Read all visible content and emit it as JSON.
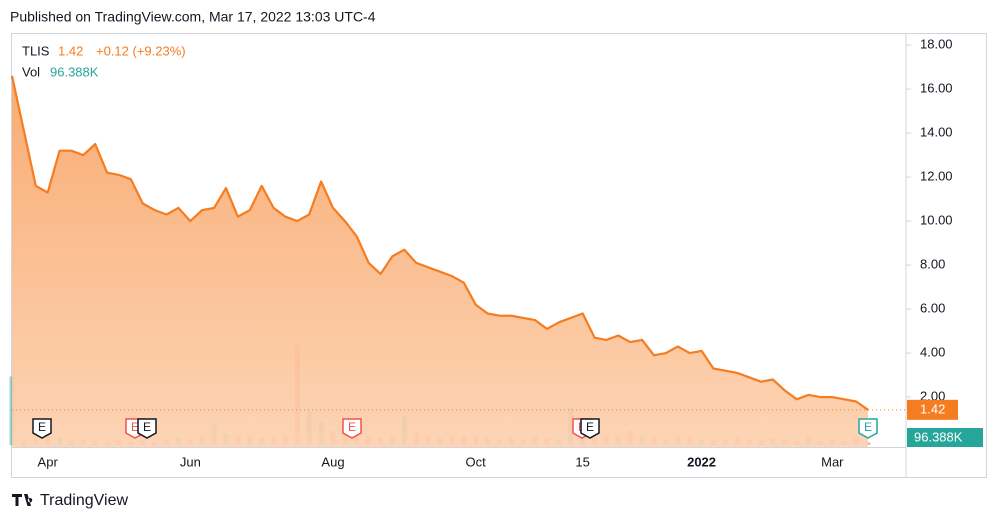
{
  "header": {
    "text": "Published on TradingView.com, Mar 17, 2022 13:03 UTC-4"
  },
  "chart_data": {
    "type": "area",
    "change": "+0.12 (+9.23%)",
    "categories": [
      null,
      null,
      null,
      "Apr",
      null,
      null,
      null,
      null,
      null,
      null,
      null,
      null,
      null,
      null,
      null,
      "Jun",
      null,
      null,
      null,
      null,
      null,
      null,
      null,
      null,
      null,
      null,
      null,
      "Aug",
      null,
      null,
      null,
      null,
      null,
      null,
      null,
      null,
      null,
      null,
      null,
      "Oct",
      null,
      null,
      null,
      null,
      null,
      null,
      null,
      null,
      "15",
      null,
      null,
      null,
      null,
      null,
      null,
      null,
      null,
      null,
      "2022",
      null,
      null,
      null,
      null,
      null,
      null,
      null,
      null,
      null,
      null,
      "Mar",
      null,
      null,
      null
    ],
    "series": [
      {
        "name": "TLIS",
        "color": "#f57c1f",
        "values": [
          16.6,
          14.1,
          11.6,
          11.3,
          13.2,
          13.2,
          13.0,
          13.5,
          12.2,
          12.1,
          11.9,
          10.8,
          10.5,
          10.3,
          10.6,
          10.0,
          10.5,
          10.6,
          11.5,
          10.2,
          10.5,
          11.6,
          10.6,
          10.2,
          10.0,
          10.3,
          11.8,
          10.6,
          10.0,
          9.3,
          8.1,
          7.6,
          8.4,
          8.7,
          8.1,
          7.9,
          7.7,
          7.5,
          7.2,
          6.2,
          5.8,
          5.7,
          5.7,
          5.6,
          5.5,
          5.1,
          5.4,
          5.6,
          5.8,
          4.7,
          4.6,
          4.8,
          4.5,
          4.6,
          3.9,
          4.0,
          4.3,
          4.0,
          4.1,
          3.3,
          3.2,
          3.1,
          2.9,
          2.7,
          2.8,
          2.3,
          1.9,
          2.1,
          2.0,
          2.0,
          1.9,
          1.8,
          1.42
        ]
      },
      {
        "name": "Vol",
        "color": "#26a69a",
        "values": [
          2400,
          150,
          200,
          300,
          250,
          150,
          200,
          150,
          100,
          150,
          120,
          150,
          100,
          200,
          250,
          200,
          300,
          700,
          400,
          350,
          300,
          250,
          300,
          350,
          3500,
          1200,
          800,
          500,
          400,
          300,
          300,
          250,
          300,
          1000,
          400,
          300,
          250,
          300,
          350,
          300,
          250,
          200,
          250,
          200,
          300,
          250,
          200,
          1300,
          400,
          250,
          350,
          300,
          500,
          300,
          250,
          200,
          300,
          250,
          200,
          150,
          200,
          300,
          200,
          150,
          250,
          200,
          150,
          300,
          150,
          200,
          150,
          250,
          96.388
        ],
        "value_labels": [
          null,
          null,
          null,
          null,
          null,
          null,
          null,
          null,
          null,
          null,
          null,
          null,
          null,
          null,
          null,
          null,
          null,
          null,
          null,
          null,
          null,
          null,
          null,
          null,
          null,
          null,
          null,
          null,
          null,
          null,
          null,
          null,
          null,
          null,
          null,
          null,
          null,
          null,
          null,
          null,
          null,
          null,
          null,
          null,
          null,
          null,
          null,
          null,
          null,
          null,
          null,
          null,
          null,
          null,
          null,
          null,
          null,
          null,
          null,
          null,
          null,
          null,
          null,
          null,
          null,
          null,
          null,
          null,
          null,
          null,
          null,
          null,
          "96.388K"
        ]
      }
    ],
    "ylim": [
      -0.27,
      18.55
    ],
    "yticks": [
      {
        "value": 2,
        "label": "2.00"
      },
      {
        "value": 4,
        "label": "4.00"
      },
      {
        "value": 6,
        "label": "6.00"
      },
      {
        "value": 8,
        "label": "8.00"
      },
      {
        "value": 10,
        "label": "10.00"
      },
      {
        "value": 12,
        "label": "12.00"
      },
      {
        "value": 14,
        "label": "14.00"
      },
      {
        "value": 16,
        "label": "16.00"
      },
      {
        "value": 18,
        "label": "18.00"
      }
    ],
    "events": [
      "E",
      "E",
      "E",
      "E",
      "E",
      "E",
      "E"
    ]
  },
  "footer": {
    "brand": "TradingView"
  }
}
